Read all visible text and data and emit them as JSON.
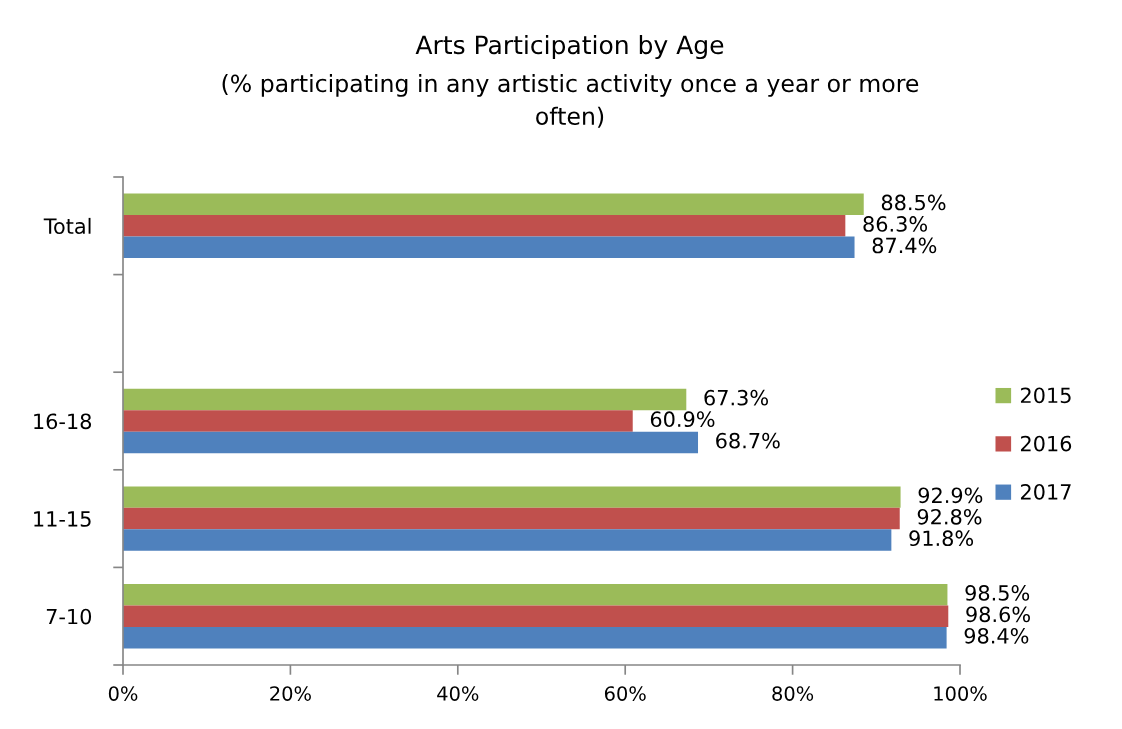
{
  "chart_data": {
    "type": "bar",
    "orientation": "horizontal",
    "title": "Arts Participation by Age",
    "subtitle": "(% participating in any artistic activity once a year or more often)",
    "categories": [
      "Total",
      null,
      "16-18",
      "11-15",
      "7-10"
    ],
    "series": [
      {
        "name": "2015",
        "color": "#9bbb59",
        "values": [
          88.5,
          null,
          67.3,
          92.9,
          98.5
        ],
        "value_labels": [
          "88.5%",
          null,
          "67.3%",
          "92.9%",
          "98.5%"
        ]
      },
      {
        "name": "2016",
        "color": "#c0504d",
        "values": [
          86.3,
          null,
          60.9,
          92.8,
          98.6
        ],
        "value_labels": [
          "86.3%",
          null,
          "60.9%",
          "92.8%",
          "98.6%"
        ]
      },
      {
        "name": "2017",
        "color": "#4f81bd",
        "values": [
          87.4,
          null,
          68.7,
          91.8,
          98.4
        ],
        "value_labels": [
          "87.4%",
          null,
          "68.7%",
          "91.8%",
          "98.4%"
        ]
      }
    ],
    "xlim": [
      0,
      100
    ],
    "xticks": [
      {
        "value": 0,
        "label": "0%"
      },
      {
        "value": 20,
        "label": "20%"
      },
      {
        "value": 40,
        "label": "40%"
      },
      {
        "value": 60,
        "label": "60%"
      },
      {
        "value": 80,
        "label": "80%"
      },
      {
        "value": 100,
        "label": "100%"
      }
    ],
    "legend": "right",
    "grid": false
  }
}
